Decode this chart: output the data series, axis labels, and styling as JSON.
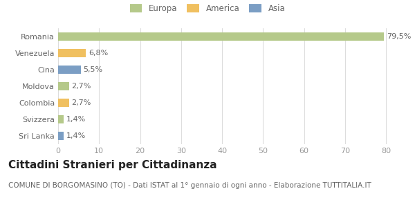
{
  "categories": [
    "Sri Lanka",
    "Svizzera",
    "Colombia",
    "Moldova",
    "Cina",
    "Venezuela",
    "Romania"
  ],
  "values": [
    1.4,
    1.4,
    2.7,
    2.7,
    5.5,
    6.8,
    79.5
  ],
  "colors": [
    "#7b9ec4",
    "#b5c98a",
    "#f0c060",
    "#b5c98a",
    "#7b9ec4",
    "#f0c060",
    "#b5c98a"
  ],
  "labels": [
    "1,4%",
    "1,4%",
    "2,7%",
    "2,7%",
    "5,5%",
    "6,8%",
    "79,5%"
  ],
  "legend": [
    {
      "label": "Europa",
      "color": "#b5c98a"
    },
    {
      "label": "America",
      "color": "#f0c060"
    },
    {
      "label": "Asia",
      "color": "#7b9ec4"
    }
  ],
  "title": "Cittadini Stranieri per Cittadinanza",
  "subtitle": "COMUNE DI BORGOMASINO (TO) - Dati ISTAT al 1° gennaio di ogni anno - Elaborazione TUTTITALIA.IT",
  "xlim": [
    0,
    83
  ],
  "xticks": [
    0,
    10,
    20,
    30,
    40,
    50,
    60,
    70,
    80
  ],
  "bg_color": "#ffffff",
  "grid_color": "#dddddd",
  "bar_height": 0.5,
  "title_fontsize": 11,
  "subtitle_fontsize": 7.5,
  "label_fontsize": 8,
  "tick_fontsize": 8
}
